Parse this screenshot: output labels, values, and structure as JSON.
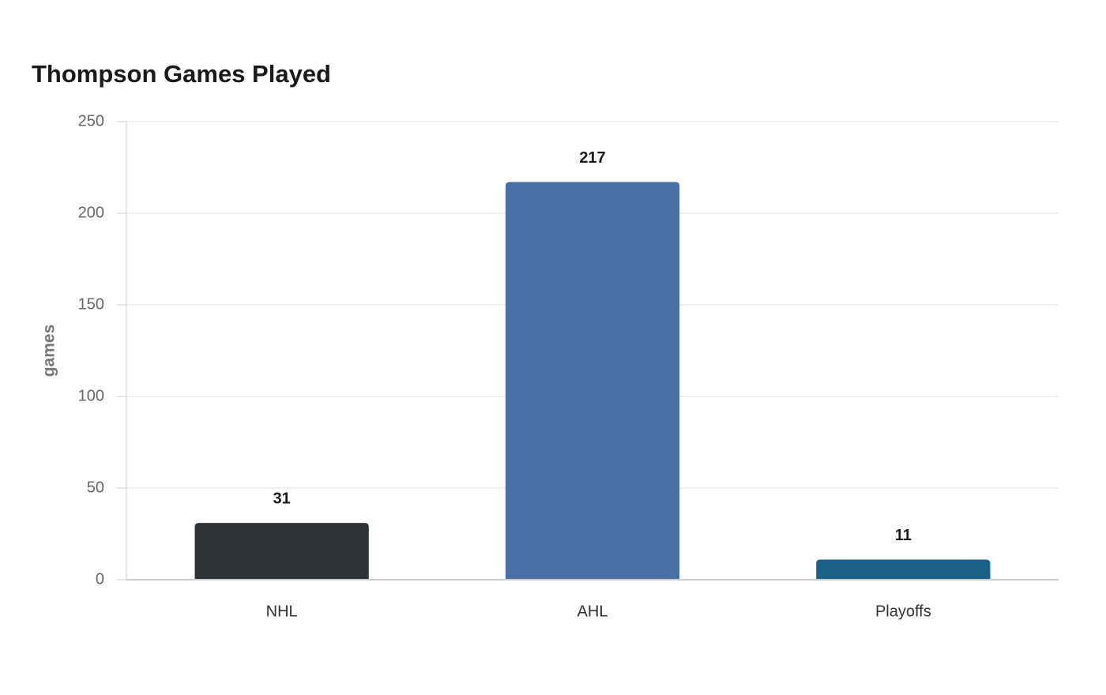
{
  "chart_data": {
    "type": "bar",
    "title": "Thompson Games Played",
    "y_label": "games",
    "categories": [
      "NHL",
      "AHL",
      "Playoffs"
    ],
    "values": [
      31,
      217,
      11
    ],
    "colors": [
      "#2e3436",
      "#4a6fa5",
      "#1a6087"
    ],
    "ylim": [
      0,
      250
    ],
    "yticks": [
      0,
      50,
      100,
      150,
      200,
      250
    ],
    "grid": true
  }
}
